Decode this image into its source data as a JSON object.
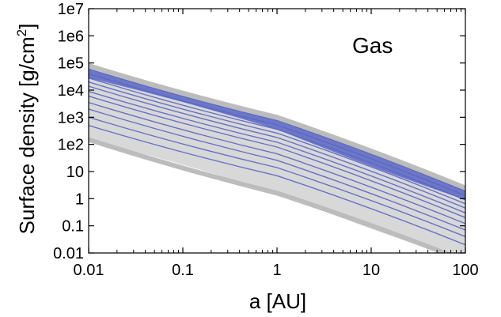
{
  "chart_data": {
    "type": "line",
    "title": "",
    "annotation": "Gas",
    "xlabel": "a [AU]",
    "ylabel": "Surface density [g/cm",
    "ylabel_superscript": "2",
    "ylabel_suffix": "]",
    "x_scale": "log",
    "y_scale": "log",
    "xlim": [
      0.01,
      100
    ],
    "ylim": [
      0.01,
      10000000
    ],
    "x_ticks": [
      0.01,
      0.1,
      1,
      10,
      100
    ],
    "x_tick_labels": [
      "0.01",
      "0.1",
      "1",
      "10",
      "100"
    ],
    "y_ticks": [
      0.01,
      0.1,
      1,
      10,
      100,
      1000,
      10000,
      100000,
      1000000,
      10000000
    ],
    "y_tick_labels": [
      "0.01",
      "0.1",
      "1",
      "10",
      "1e2",
      "1e3",
      "1e4",
      "1e5",
      "1e6",
      "1e7"
    ],
    "grid": false,
    "legend": "none",
    "colors": {
      "gray": "#bcbcbc",
      "blue": "#5a66c4",
      "light_gray": "#d8d8d8"
    },
    "series": [
      {
        "color": "gray",
        "points": [
          [
            0.01,
            80000
          ],
          [
            1,
            1000
          ],
          [
            100,
            2.5
          ]
        ]
      },
      {
        "color": "blue",
        "points": [
          [
            0.01,
            60000
          ],
          [
            1,
            760
          ],
          [
            100,
            1.9
          ]
        ]
      },
      {
        "color": "blue",
        "points": [
          [
            0.01,
            40000
          ],
          [
            1,
            520
          ],
          [
            100,
            1.3
          ]
        ]
      },
      {
        "color": "blue",
        "points": [
          [
            0.01,
            28000
          ],
          [
            1,
            360
          ],
          [
            100,
            0.9
          ]
        ]
      },
      {
        "color": "blue",
        "points": [
          [
            0.01,
            20000
          ],
          [
            1,
            260
          ],
          [
            100,
            0.65
          ]
        ]
      },
      {
        "color": "blue",
        "points": [
          [
            0.01,
            14000
          ],
          [
            1,
            180
          ],
          [
            100,
            0.45
          ]
        ]
      },
      {
        "color": "blue",
        "points": [
          [
            0.01,
            9000
          ],
          [
            1,
            120
          ],
          [
            100,
            0.3
          ]
        ]
      },
      {
        "color": "blue",
        "points": [
          [
            0.01,
            6000
          ],
          [
            1,
            80
          ],
          [
            100,
            0.2
          ]
        ]
      },
      {
        "color": "blue",
        "points": [
          [
            0.01,
            3500
          ],
          [
            1,
            45
          ],
          [
            100,
            0.12
          ]
        ]
      },
      {
        "color": "blue",
        "points": [
          [
            0.01,
            2000
          ],
          [
            1,
            26
          ],
          [
            100,
            0.07
          ]
        ]
      },
      {
        "color": "blue",
        "points": [
          [
            0.01,
            1000
          ],
          [
            1,
            14
          ],
          [
            100,
            0.04
          ]
        ]
      },
      {
        "color": "blue",
        "points": [
          [
            0.01,
            500
          ],
          [
            1,
            7
          ],
          [
            100,
            0.02
          ]
        ]
      },
      {
        "color": "gray",
        "points": [
          [
            0.01,
            150
          ],
          [
            1,
            1.6
          ],
          [
            100,
            0.005
          ]
        ]
      }
    ]
  }
}
